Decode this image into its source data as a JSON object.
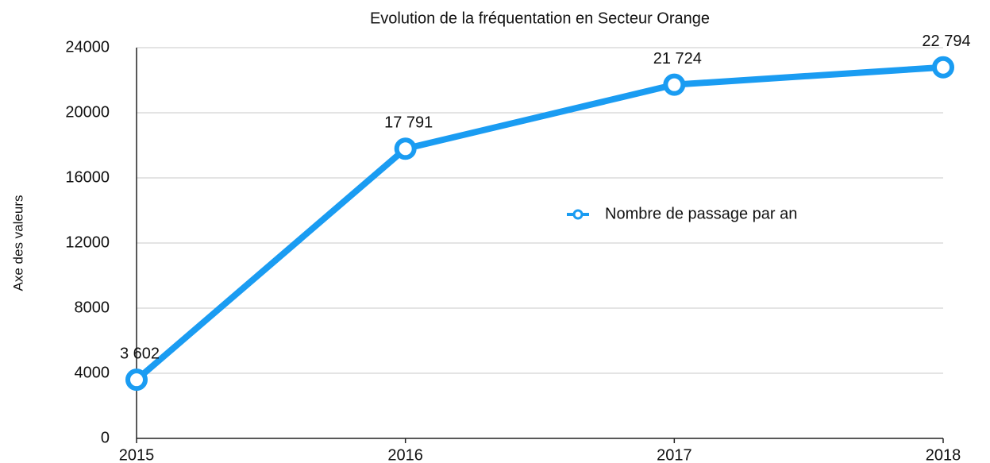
{
  "chart_data": {
    "type": "line",
    "title": "Evolution de la fréquentation en Secteur Orange",
    "y_label": "Axe des valeurs",
    "categories": [
      "2015",
      "2016",
      "2017",
      "2018"
    ],
    "series": [
      {
        "name": "Nombre de passage par an",
        "color": "#1a9cf2",
        "values": [
          3602,
          17791,
          21724,
          22794
        ],
        "value_labels": [
          "3 602",
          "17 791",
          "21 724",
          "22 794"
        ]
      }
    ],
    "ylim": [
      0,
      24000
    ],
    "yticks": [
      0,
      4000,
      8000,
      12000,
      16000,
      20000,
      24000
    ],
    "grid": true,
    "legend": "center-right"
  }
}
